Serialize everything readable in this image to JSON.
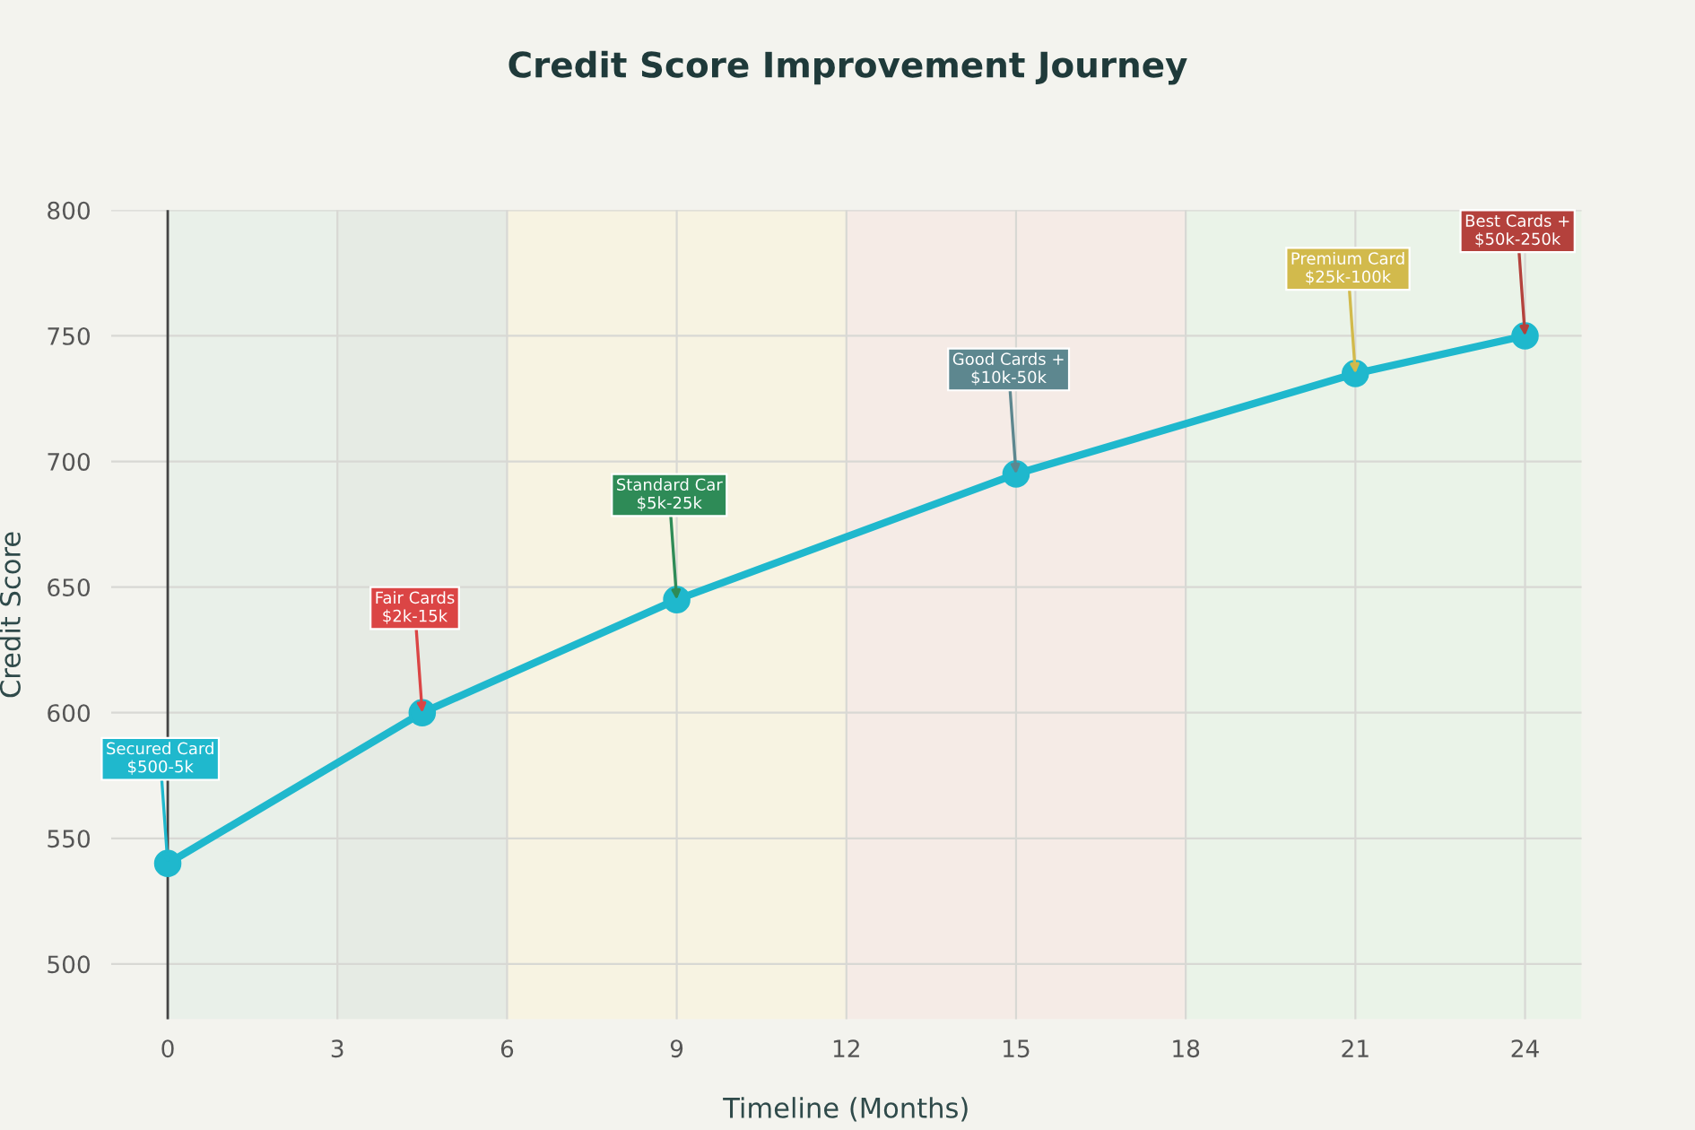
{
  "chart_data": {
    "type": "line",
    "title": "Credit Score Improvement Journey",
    "xlabel": "Timeline (Months)",
    "ylabel": "Credit Score",
    "x": [
      0,
      4.5,
      9,
      15,
      21,
      24
    ],
    "series": [
      {
        "color": "#1fb8cd",
        "values": [
          540,
          600,
          645,
          695,
          735,
          750
        ]
      }
    ],
    "marker": "circle",
    "line_style": "solid",
    "xlim": [
      -1,
      25
    ],
    "xticks": [
      0,
      3,
      6,
      9,
      12,
      15,
      18,
      21,
      24
    ],
    "ylim": [
      478,
      800
    ],
    "yticks": [
      500,
      550,
      600,
      650,
      700,
      750,
      800
    ],
    "grid": true,
    "legend": false,
    "ref_lines": [
      {
        "axis": "x",
        "value": 0,
        "label": null,
        "color": "#444444"
      }
    ],
    "bands": [
      {
        "axis": "x",
        "from": 0,
        "to": 3,
        "label": null,
        "color": "#e9f0e9"
      },
      {
        "axis": "x",
        "from": 3,
        "to": 6,
        "label": null,
        "color": "#e6ebe4"
      },
      {
        "axis": "x",
        "from": 6,
        "to": 12,
        "label": null,
        "color": "#f7f3e2"
      },
      {
        "axis": "x",
        "from": 12,
        "to": 18,
        "label": null,
        "color": "#f5ebe6"
      },
      {
        "axis": "x",
        "from": 18,
        "to": 25,
        "label": null,
        "color": "#eaf3e8"
      }
    ],
    "annotations": [
      {
        "text": "Secured Card\n$500-5k",
        "x": 0,
        "y": 540
      },
      {
        "text": "Fair Cards\n$2k-15k",
        "x": 4.5,
        "y": 600
      },
      {
        "text": "Standard Car\n$5k-25k",
        "x": 9,
        "y": 645
      },
      {
        "text": "Good Cards +\n$10k-50k",
        "x": 15,
        "y": 695
      },
      {
        "text": "Premium Card\n$25k-100k",
        "x": 21,
        "y": 735
      },
      {
        "text": "Best Cards +\n$50k-250k",
        "x": 24,
        "y": 750
      }
    ]
  }
}
